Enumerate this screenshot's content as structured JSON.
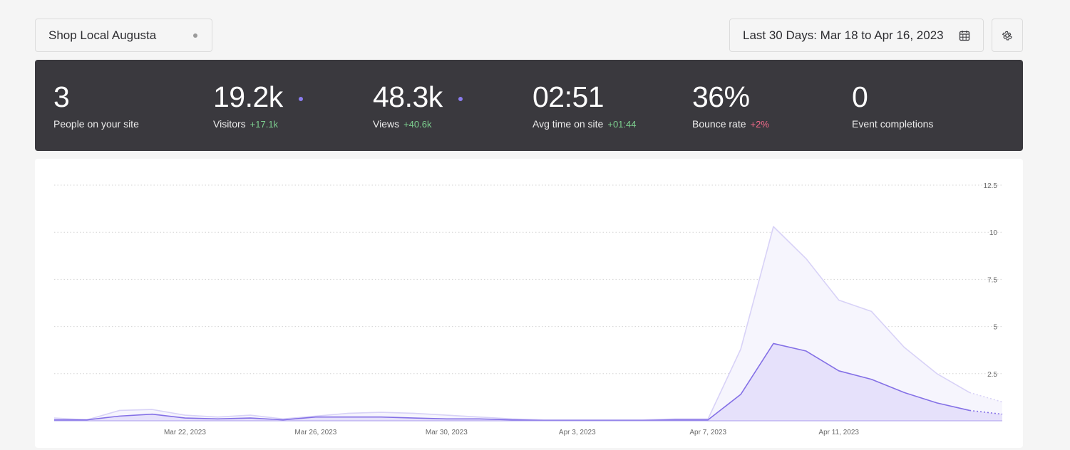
{
  "header": {
    "site_name": "Shop Local Augusta",
    "date_range": "Last 30 Days: Mar 18 to Apr 16, 2023"
  },
  "icons": {
    "site_status": "status-dot-icon",
    "calendar": "calendar-icon",
    "settings": "gear-icon"
  },
  "colors": {
    "stats_bg": "#3a393e",
    "accent": "#8b7cf0",
    "positive": "#7dcf8f",
    "negative": "#f26a8a"
  },
  "stats": [
    {
      "value": "3",
      "label": "People on your site",
      "delta": "",
      "delta_type": ""
    },
    {
      "value": "19.2k",
      "label": "Visitors",
      "delta": "+17.1k",
      "delta_type": "good"
    },
    {
      "value": "48.3k",
      "label": "Views",
      "delta": "+40.6k",
      "delta_type": "good"
    },
    {
      "value": "02:51",
      "label": "Avg time on site",
      "delta": "+01:44",
      "delta_type": "good"
    },
    {
      "value": "36%",
      "label": "Bounce rate",
      "delta": "+2%",
      "delta_type": "bad"
    },
    {
      "value": "0",
      "label": "Event completions",
      "delta": "",
      "delta_type": ""
    }
  ],
  "chart_data": {
    "type": "area",
    "title": "",
    "xlabel": "",
    "ylabel": "",
    "ylim": [
      0,
      12.5
    ],
    "y_ticks": [
      "2.5",
      "5",
      "7.5",
      "10",
      "12.5"
    ],
    "grid": true,
    "x_tick_labels": [
      "Mar 22, 2023",
      "Mar 26, 2023",
      "Mar 30, 2023",
      "Apr 3, 2023",
      "Apr 7, 2023",
      "Apr 11, 2023"
    ],
    "x_tick_indices": [
      4,
      8,
      12,
      16,
      20,
      24
    ],
    "categories": [
      "Mar 18",
      "Mar 19",
      "Mar 20",
      "Mar 21",
      "Mar 22",
      "Mar 23",
      "Mar 24",
      "Mar 25",
      "Mar 26",
      "Mar 27",
      "Mar 28",
      "Mar 29",
      "Mar 30",
      "Mar 31",
      "Apr 1",
      "Apr 2",
      "Apr 3",
      "Apr 4",
      "Apr 5",
      "Apr 6",
      "Apr 7",
      "Apr 8",
      "Apr 9",
      "Apr 10",
      "Apr 11",
      "Apr 12",
      "Apr 13",
      "Apr 14",
      "Apr 15",
      "Apr 16"
    ],
    "series": [
      {
        "key": "views",
        "color": "#d8d2f7",
        "fill": "#f6f5fd",
        "values": [
          0.15,
          0.05,
          0.55,
          0.6,
          0.3,
          0.2,
          0.3,
          0.1,
          0.25,
          0.4,
          0.45,
          0.4,
          0.3,
          0.2,
          0.1,
          0.05,
          0.05,
          0.05,
          0.05,
          0.1,
          0.1,
          3.8,
          10.3,
          8.6,
          6.4,
          5.8,
          3.9,
          2.5,
          1.5,
          1.0
        ]
      },
      {
        "key": "visitors",
        "color": "#8470e6",
        "fill": "#e6e1fb",
        "values": [
          0.05,
          0.05,
          0.25,
          0.35,
          0.15,
          0.1,
          0.15,
          0.05,
          0.2,
          0.2,
          0.2,
          0.15,
          0.1,
          0.1,
          0.05,
          0.02,
          0.02,
          0.02,
          0.02,
          0.05,
          0.05,
          1.4,
          4.1,
          3.7,
          2.65,
          2.2,
          1.5,
          0.95,
          0.55,
          0.35
        ]
      }
    ],
    "partial_from_index": 28
  }
}
